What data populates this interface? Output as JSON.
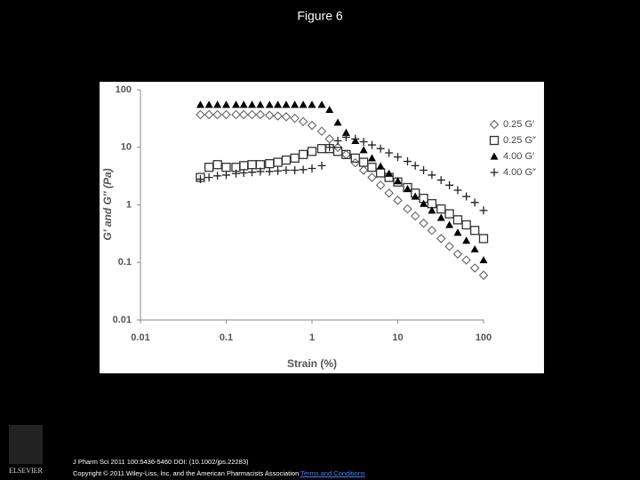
{
  "page": {
    "title": "Figure 6",
    "citation": "J Pharm Sci 2011 100:5436-5460 DOI: (10.1002/jps.22283)",
    "copyright": "Copyright © 2011 Wiley-Liss, Inc. and the American Pharmacists Association",
    "link": "Terms and Conditions",
    "logo": "ELSEVIER"
  },
  "chart_data": {
    "type": "scatter",
    "xlabel": "Strain (%)",
    "ylabel": "G′ and G″ (Pa)",
    "xscale": "log",
    "yscale": "log",
    "xlim": [
      0.01,
      100
    ],
    "ylim": [
      0.01,
      100
    ],
    "xticks": [
      0.01,
      0.1,
      1,
      10,
      100
    ],
    "yticks": [
      0.01,
      0.1,
      1,
      10,
      100
    ],
    "legend": "right",
    "x": [
      0.05,
      0.063,
      0.079,
      0.1,
      0.13,
      0.16,
      0.2,
      0.25,
      0.32,
      0.4,
      0.5,
      0.63,
      0.79,
      1,
      1.3,
      1.6,
      2,
      2.5,
      3.2,
      4,
      5,
      6.3,
      7.9,
      10,
      13,
      16,
      20,
      25,
      32,
      40,
      50,
      63,
      79,
      100
    ],
    "series": [
      {
        "name": "0.25 G′",
        "color": "#555555",
        "marker": "diamond",
        "values": [
          37,
          37,
          37,
          37,
          37,
          37,
          37,
          37,
          36,
          35,
          34,
          32,
          28,
          24,
          19,
          14,
          10,
          7.5,
          5.4,
          4,
          3,
          2.2,
          1.6,
          1.2,
          0.85,
          0.64,
          0.48,
          0.36,
          0.26,
          0.19,
          0.14,
          0.11,
          0.08,
          0.06
        ]
      },
      {
        "name": "0.25 G″",
        "color": "#333333",
        "marker": "square",
        "values": [
          3,
          4.5,
          5,
          4.5,
          4.5,
          4.8,
          5,
          5,
          5.2,
          5.5,
          6,
          6.5,
          7.5,
          8.5,
          9.5,
          9.5,
          8.5,
          7.5,
          6.5,
          5.5,
          4.5,
          3.6,
          3,
          2.5,
          2,
          1.6,
          1.3,
          1.05,
          0.85,
          0.7,
          0.55,
          0.45,
          0.36,
          0.26
        ]
      },
      {
        "name": "4.00 G′",
        "color": "#000000",
        "marker": "triangle",
        "values": [
          55,
          55,
          55,
          55,
          55,
          55,
          55,
          55,
          55,
          55,
          55,
          55,
          55,
          55,
          55,
          45,
          27,
          18,
          13,
          9,
          6.5,
          4.7,
          3.5,
          2.6,
          1.9,
          1.4,
          1.05,
          0.8,
          0.6,
          0.45,
          0.33,
          0.24,
          0.17,
          0.11
        ]
      },
      {
        "name": "4.00 G″",
        "color": "#222222",
        "marker": "plus",
        "values": [
          2.8,
          3,
          3.2,
          3.3,
          3.5,
          3.6,
          3.7,
          3.8,
          3.8,
          3.9,
          4,
          4,
          4.1,
          4.3,
          4.8,
          10,
          13,
          15,
          14,
          12.5,
          11,
          9.5,
          8,
          6.8,
          5.7,
          4.8,
          4,
          3.3,
          2.7,
          2.2,
          1.8,
          1.4,
          1.1,
          0.8
        ]
      }
    ]
  }
}
